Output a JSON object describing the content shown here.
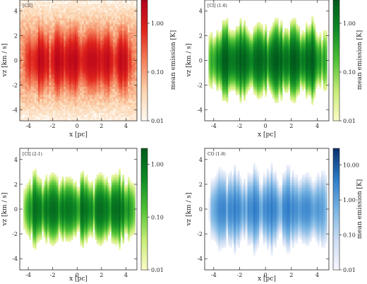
{
  "chart_data": [
    {
      "type": "heatmap",
      "title": "[CII]",
      "xlabel": "x [pc]",
      "ylabel": "vz [km / s]",
      "xlim": [
        -4.7,
        4.9
      ],
      "ylim": [
        -4.9,
        4.9
      ],
      "x_ticks": [
        -4,
        -2,
        0,
        2,
        4
      ],
      "y_ticks": [
        -4,
        -2,
        0,
        2,
        4
      ],
      "colorbar": {
        "label": "mean emission [K]",
        "scale": "log",
        "range": [
          0.01,
          3.0
        ],
        "ticks": [
          "0.01",
          "0.10",
          "1.00"
        ],
        "tick_values": [
          0.01,
          0.1,
          1.0
        ],
        "colormap": [
          "#fffaf3",
          "#fbd3ad",
          "#f3805a",
          "#e0241c",
          "#b3001b"
        ]
      },
      "profile": {
        "peak": 1.4,
        "width": 0.9,
        "halo": 0.12,
        "halo_width": 5.5
      }
    },
    {
      "type": "heatmap",
      "title": "[CI] (1-0)",
      "xlabel": "x [pc]",
      "ylabel": "vz [km / s]",
      "xlim": [
        -4.7,
        4.9
      ],
      "ylim": [
        -4.9,
        4.9
      ],
      "x_ticks": [
        -4,
        -2,
        0,
        2,
        4
      ],
      "y_ticks": [
        -4,
        -2,
        0,
        2,
        4
      ],
      "colorbar": {
        "label": "mean emission [K]",
        "scale": "log",
        "range": [
          0.01,
          3.0
        ],
        "ticks": [
          "0.01",
          "0.10",
          "1.00"
        ],
        "tick_values": [
          0.01,
          0.1,
          1.0
        ],
        "colormap": [
          "#fdfbc7",
          "#c6ec76",
          "#4fc136",
          "#0f8a25",
          "#005a1c"
        ]
      },
      "profile": {
        "peak": 1.8,
        "width": 0.85,
        "halo": 0.0,
        "halo_width": 2.0
      }
    },
    {
      "type": "heatmap",
      "title": "[CI] (2-1)",
      "xlabel": "x [pc]",
      "ylabel": "vz [km / s]",
      "xlim": [
        -4.7,
        4.9
      ],
      "ylim": [
        -4.9,
        4.9
      ],
      "x_ticks": [
        -4,
        -2,
        0,
        2,
        4
      ],
      "y_ticks": [
        -4,
        -2,
        0,
        2,
        4
      ],
      "colorbar": {
        "label": "",
        "scale": "log",
        "range": [
          0.01,
          2.0
        ],
        "ticks": [
          "0.01",
          "0.10",
          "1.00"
        ],
        "tick_values": [
          0.01,
          0.1,
          1.0
        ],
        "colormap": [
          "#fdfbc7",
          "#c6ec76",
          "#4fc136",
          "#0f8a25",
          "#005a1c"
        ]
      },
      "profile": {
        "peak": 0.9,
        "width": 0.85,
        "halo": 0.0,
        "halo_width": 2.0
      }
    },
    {
      "type": "heatmap",
      "title": "CO (1-0)",
      "xlabel": "x [pc]",
      "ylabel": "vz [km / s]",
      "xlim": [
        -4.7,
        4.9
      ],
      "ylim": [
        -4.9,
        4.9
      ],
      "x_ticks": [
        -4,
        -2,
        0,
        2,
        4
      ],
      "y_ticks": [
        -4,
        -2,
        0,
        2,
        4
      ],
      "colorbar": {
        "label": "mean emission [K]",
        "scale": "log",
        "range": [
          0.01,
          30.0
        ],
        "ticks": [
          "0.01",
          "0.10",
          "1.00",
          "10.00"
        ],
        "tick_values": [
          0.01,
          0.1,
          1.0,
          10.0
        ],
        "colormap": [
          "#f7f7fd",
          "#cbdcf2",
          "#78b4e2",
          "#2c7ac7",
          "#08306b"
        ]
      },
      "profile": {
        "peak": 2.2,
        "width": 0.85,
        "halo": 0.0,
        "halo_width": 2.0
      }
    }
  ]
}
